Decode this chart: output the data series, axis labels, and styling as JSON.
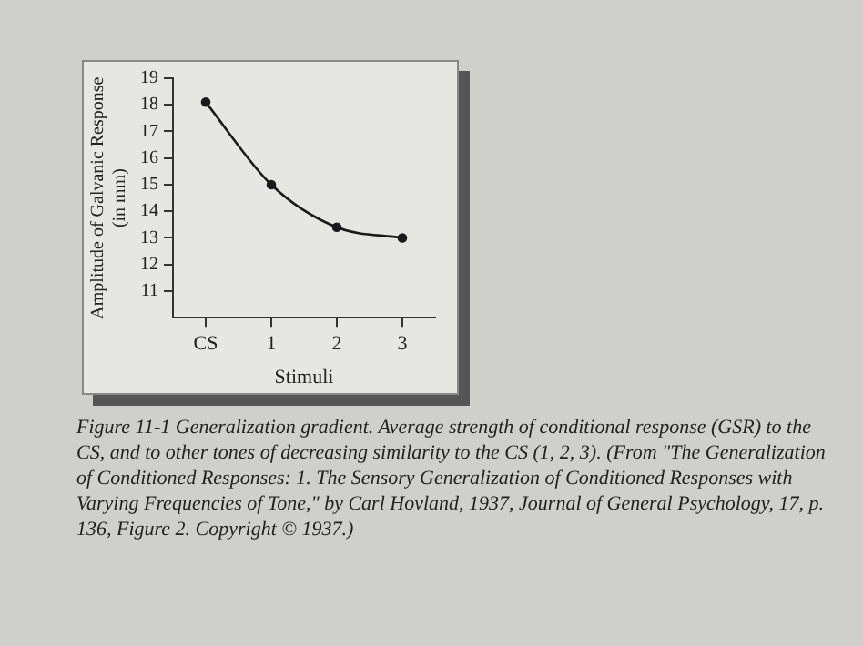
{
  "chart_data": {
    "type": "line",
    "xlabel": "Stimuli",
    "ylabel": "Amplitude of Galvanic Response\n(in mm)",
    "categories": [
      "CS",
      "1",
      "2",
      "3"
    ],
    "series": [
      {
        "color": "#1a1a1a",
        "values": [
          18.1,
          15.0,
          13.4,
          13.0
        ]
      }
    ],
    "ylim": [
      10,
      19
    ],
    "yticks": [
      11,
      12,
      13,
      14,
      15,
      16,
      17,
      18,
      19
    ],
    "grid": false,
    "legend": false,
    "marker": "circle",
    "line_style": "solid",
    "annotations": [
      "Figure 11-1  Generalization gradient. Average strength of conditional response (GSR) to the CS, and to other tones of decreasing similarity to the CS (1, 2, 3). (From \"The Generalization of Conditioned Responses: 1. The Sensory Generalization of Conditioned Responses with Varying Frequencies of Tone,\" by Carl Hovland, 1937, Journal of General Psychology, 17, p. 136, Figure 2. Copyright © 1937.)"
    ]
  }
}
